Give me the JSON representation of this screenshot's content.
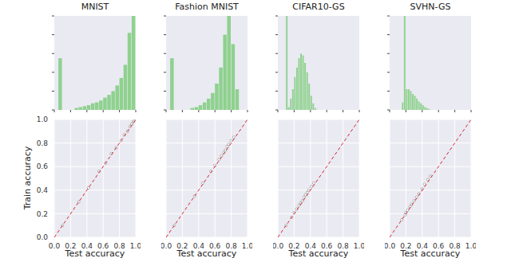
{
  "chart_data": [
    {
      "type": "histogram",
      "title": "MNIST",
      "color": "#8fd18f",
      "grid": false,
      "tick_labels": false,
      "bins": [
        0,
        0.05,
        0.1,
        0.15,
        0.2,
        0.25,
        0.3,
        0.35,
        0.4,
        0.45,
        0.5,
        0.55,
        0.6,
        0.65,
        0.7,
        0.75,
        0.8,
        0.85,
        0.9,
        0.95,
        1
      ],
      "counts": [
        0,
        55,
        0,
        0,
        0,
        2,
        3,
        4,
        5,
        7,
        8,
        10,
        13,
        16,
        20,
        26,
        34,
        48,
        82,
        100
      ],
      "xlim": [
        0,
        1
      ],
      "xticks": [
        0,
        0.2,
        0.4,
        0.6,
        0.8,
        1
      ],
      "ylim": [
        0,
        100
      ],
      "yticks": [
        0,
        20,
        40,
        60,
        80,
        100
      ]
    },
    {
      "type": "histogram",
      "title": "Fashion MNIST",
      "color": "#8fd18f",
      "grid": false,
      "tick_labels": false,
      "bins": [
        0,
        0.05,
        0.1,
        0.15,
        0.2,
        0.25,
        0.3,
        0.35,
        0.4,
        0.45,
        0.5,
        0.55,
        0.6,
        0.65,
        0.7,
        0.75,
        0.8,
        0.85,
        0.9,
        0.95,
        1
      ],
      "counts": [
        0,
        55,
        0,
        0,
        0,
        0,
        2,
        3,
        5,
        8,
        12,
        18,
        28,
        45,
        80,
        100,
        70,
        22,
        0,
        0
      ],
      "xlim": [
        0,
        1
      ],
      "xticks": [
        0,
        0.2,
        0.4,
        0.6,
        0.8,
        1
      ],
      "ylim": [
        0,
        100
      ],
      "yticks": [
        0,
        20,
        40,
        60,
        80,
        100
      ]
    },
    {
      "type": "histogram",
      "title": "CIFAR10-GS",
      "color": "#8fd18f",
      "grid": false,
      "tick_labels": false,
      "bins": [
        0,
        0.025,
        0.05,
        0.075,
        0.1,
        0.125,
        0.15,
        0.175,
        0.2,
        0.225,
        0.25,
        0.275,
        0.3,
        0.325,
        0.35,
        0.375,
        0.4,
        0.425,
        0.45,
        0.475,
        0.5,
        0.525,
        0.55,
        0.575,
        0.6,
        0.625,
        0.65,
        0.675,
        0.7,
        0.725,
        0.75,
        0.775,
        0.8,
        0.825,
        0.85,
        0.875,
        0.9,
        0.925,
        0.95,
        0.975,
        1
      ],
      "counts": [
        0,
        0,
        0,
        0,
        100,
        3,
        12,
        22,
        35,
        45,
        55,
        60,
        58,
        50,
        40,
        28,
        15,
        7,
        2,
        0,
        0,
        0,
        0,
        0,
        0,
        0,
        0,
        0,
        0,
        0,
        0,
        0,
        0,
        0,
        0,
        0,
        0,
        0,
        0,
        0
      ],
      "xlim": [
        0,
        1
      ],
      "xticks": [
        0,
        0.2,
        0.4,
        0.6,
        0.8,
        1
      ],
      "ylim": [
        0,
        100
      ],
      "yticks": [
        0,
        20,
        40,
        60,
        80,
        100
      ]
    },
    {
      "type": "histogram",
      "title": "SVHN-GS",
      "color": "#8fd18f",
      "grid": false,
      "tick_labels": false,
      "bins": [
        0,
        0.025,
        0.05,
        0.075,
        0.1,
        0.125,
        0.15,
        0.175,
        0.2,
        0.225,
        0.25,
        0.275,
        0.3,
        0.325,
        0.35,
        0.375,
        0.4,
        0.425,
        0.45,
        0.475,
        0.5,
        0.525,
        0.55,
        0.575,
        0.6,
        0.625,
        0.65,
        0.675,
        0.7,
        0.725,
        0.75,
        0.775,
        0.8,
        0.825,
        0.85,
        0.875,
        0.9,
        0.925,
        0.95,
        0.975,
        1
      ],
      "counts": [
        0,
        0,
        0,
        0,
        0,
        0,
        8,
        100,
        22,
        22,
        20,
        17,
        15,
        12,
        9,
        7,
        5,
        3,
        2,
        1,
        0,
        0,
        0,
        0,
        0,
        0,
        0,
        0,
        0,
        0,
        0,
        0,
        0,
        0,
        0,
        0,
        0,
        0,
        0,
        0
      ],
      "xlim": [
        0,
        1
      ],
      "xticks": [
        0,
        0.2,
        0.4,
        0.6,
        0.8,
        1
      ],
      "ylim": [
        0,
        100
      ],
      "yticks": [
        0,
        20,
        40,
        60,
        80,
        100
      ]
    },
    {
      "type": "scatter",
      "xlabel": "Test accuracy",
      "ylabel": "Train accuracy",
      "grid": true,
      "xlim": [
        0,
        1
      ],
      "ylim": [
        0,
        1
      ],
      "xticks": [
        {
          "value": 0,
          "label": "0.0"
        },
        {
          "value": 0.2,
          "label": "0.2"
        },
        {
          "value": 0.4,
          "label": "0.4"
        },
        {
          "value": 0.6,
          "label": "0.6"
        },
        {
          "value": 0.8,
          "label": "0.8"
        },
        {
          "value": 1,
          "label": "1.0"
        }
      ],
      "yticks": [
        {
          "value": 0,
          "label": "0.0"
        },
        {
          "value": 0.2,
          "label": "0.2"
        },
        {
          "value": 0.4,
          "label": "0.4"
        },
        {
          "value": 0.6,
          "label": "0.6"
        },
        {
          "value": 0.8,
          "label": "0.8"
        },
        {
          "value": 1,
          "label": "1.0"
        }
      ],
      "series": [
        {
          "type": "scatter",
          "color": "#ffffff",
          "marker": "o",
          "x": [
            0.1,
            0.3,
            0.42,
            0.55,
            0.63,
            0.7,
            0.76,
            0.82,
            0.86,
            0.9,
            0.93,
            0.95,
            0.97,
            0.98
          ],
          "values": [
            0.1,
            0.3,
            0.42,
            0.56,
            0.63,
            0.71,
            0.76,
            0.82,
            0.87,
            0.9,
            0.94,
            0.96,
            0.98,
            0.99
          ]
        },
        {
          "type": "line",
          "color": "#d62728",
          "line_style": "dashed",
          "x": [
            0,
            1
          ],
          "values": [
            0,
            1
          ]
        }
      ]
    },
    {
      "type": "scatter",
      "xlabel": "Test accuracy",
      "grid": true,
      "tick_labels": "x",
      "xlim": [
        0,
        1
      ],
      "ylim": [
        0,
        1
      ],
      "xticks": [
        {
          "value": 0,
          "label": "0.0"
        },
        {
          "value": 0.2,
          "label": "0.2"
        },
        {
          "value": 0.4,
          "label": "0.4"
        },
        {
          "value": 0.6,
          "label": "0.6"
        },
        {
          "value": 0.8,
          "label": "0.8"
        },
        {
          "value": 1,
          "label": "1.0"
        }
      ],
      "yticks": [
        0,
        0.2,
        0.4,
        0.6,
        0.8,
        1
      ],
      "series": [
        {
          "type": "scatter",
          "color": "#ffffff",
          "marker": "o",
          "x": [
            0.1,
            0.35,
            0.45,
            0.55,
            0.6,
            0.65,
            0.68,
            0.71,
            0.73,
            0.75,
            0.77,
            0.8,
            0.83
          ],
          "values": [
            0.1,
            0.35,
            0.46,
            0.56,
            0.61,
            0.66,
            0.69,
            0.72,
            0.74,
            0.77,
            0.79,
            0.82,
            0.85
          ]
        },
        {
          "type": "line",
          "color": "#d62728",
          "line_style": "dashed",
          "x": [
            0,
            1
          ],
          "values": [
            0,
            1
          ]
        }
      ]
    },
    {
      "type": "scatter",
      "xlabel": "Test accuracy",
      "grid": true,
      "tick_labels": "x",
      "xlim": [
        0,
        1
      ],
      "ylim": [
        0,
        1
      ],
      "xticks": [
        {
          "value": 0,
          "label": "0.0"
        },
        {
          "value": 0.2,
          "label": "0.2"
        },
        {
          "value": 0.4,
          "label": "0.4"
        },
        {
          "value": 0.6,
          "label": "0.6"
        },
        {
          "value": 0.8,
          "label": "0.8"
        },
        {
          "value": 1,
          "label": "1.0"
        }
      ],
      "yticks": [
        0,
        0.2,
        0.4,
        0.6,
        0.8,
        1
      ],
      "series": [
        {
          "type": "scatter",
          "color": "#ffffff",
          "marker": "o",
          "x": [
            0.1,
            0.17,
            0.2,
            0.23,
            0.26,
            0.28,
            0.3,
            0.32,
            0.34,
            0.36,
            0.38,
            0.41,
            0.44
          ],
          "values": [
            0.1,
            0.17,
            0.21,
            0.24,
            0.27,
            0.29,
            0.31,
            0.34,
            0.36,
            0.38,
            0.4,
            0.43,
            0.46
          ]
        },
        {
          "type": "line",
          "color": "#d62728",
          "line_style": "dashed",
          "x": [
            0,
            1
          ],
          "values": [
            0,
            1
          ]
        }
      ]
    },
    {
      "type": "scatter",
      "xlabel": "Test accuracy",
      "grid": true,
      "tick_labels": "x",
      "xlim": [
        0,
        1
      ],
      "ylim": [
        0,
        1
      ],
      "xticks": [
        {
          "value": 0,
          "label": "0.0"
        },
        {
          "value": 0.2,
          "label": "0.2"
        },
        {
          "value": 0.4,
          "label": "0.4"
        },
        {
          "value": 0.6,
          "label": "0.6"
        },
        {
          "value": 0.8,
          "label": "0.8"
        },
        {
          "value": 1,
          "label": "1.0"
        }
      ],
      "yticks": [
        0,
        0.2,
        0.4,
        0.6,
        0.8,
        1
      ],
      "series": [
        {
          "type": "scatter",
          "color": "#ffffff",
          "marker": "o",
          "x": [
            0.15,
            0.19,
            0.2,
            0.22,
            0.25,
            0.27,
            0.3,
            0.33,
            0.36,
            0.4,
            0.43,
            0.47,
            0.5
          ],
          "values": [
            0.15,
            0.19,
            0.21,
            0.23,
            0.26,
            0.28,
            0.31,
            0.34,
            0.37,
            0.41,
            0.45,
            0.49,
            0.52
          ]
        },
        {
          "type": "line",
          "color": "#d62728",
          "line_style": "dashed",
          "x": [
            0,
            1
          ],
          "values": [
            0,
            1
          ]
        }
      ]
    }
  ]
}
